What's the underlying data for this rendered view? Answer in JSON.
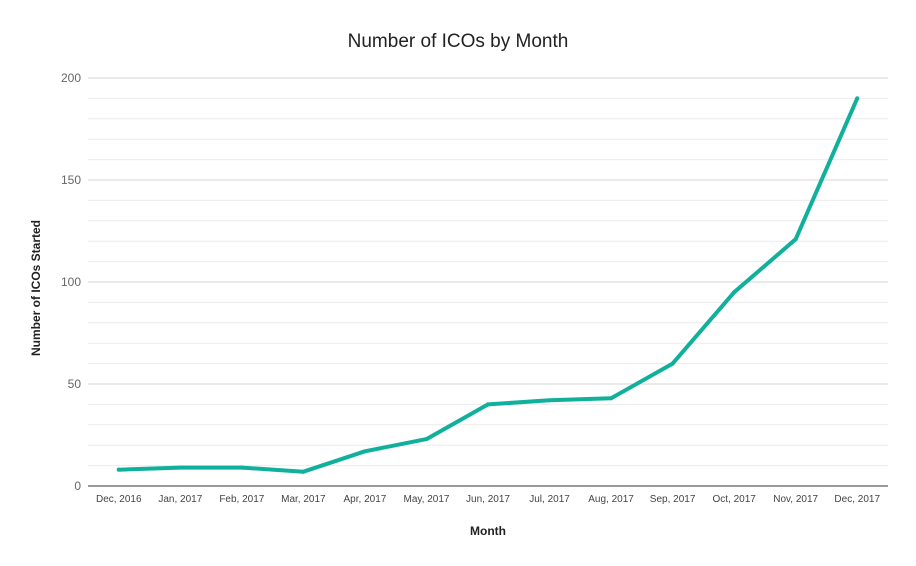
{
  "chart_data": {
    "type": "line",
    "title": "Number of ICOs by Month",
    "xlabel": "Month",
    "ylabel": "Number of ICOs Started",
    "categories": [
      "Dec, 2016",
      "Jan, 2017",
      "Feb, 2017",
      "Mar, 2017",
      "Apr, 2017",
      "May, 2017",
      "Jun, 2017",
      "Jul, 2017",
      "Aug, 2017",
      "Sep, 2017",
      "Oct, 2017",
      "Nov, 2017",
      "Dec, 2017"
    ],
    "series": [
      {
        "name": "Number of ICOs Started",
        "values": [
          8,
          9,
          9,
          7,
          17,
          23,
          40,
          42,
          43,
          60,
          95,
          121,
          190
        ],
        "color": "#10b09c"
      }
    ],
    "ylim": [
      0,
      200
    ],
    "yticks": [
      0,
      50,
      100,
      150,
      200
    ],
    "minor_gridlines": 4,
    "grid": true,
    "legend": "none"
  }
}
